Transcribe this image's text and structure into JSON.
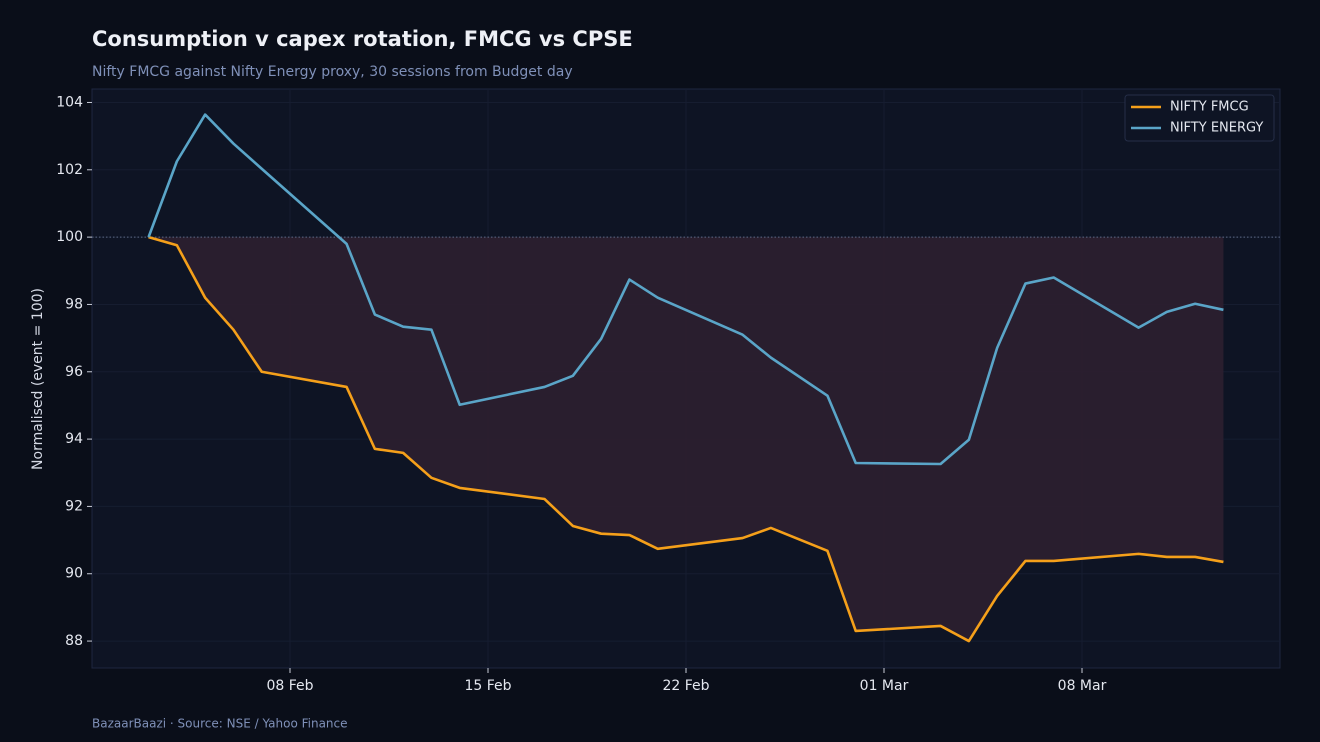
{
  "chart_data": {
    "type": "line",
    "title": "Consumption v capex rotation, FMCG vs CPSE",
    "subtitle": "Nifty FMCG against Nifty Energy proxy, 30 sessions from Budget day",
    "ylabel": "Normalised (event = 100)",
    "source": "BazaarBaazi  ·  Source: NSE / Yahoo Finance",
    "x": [
      "03 Feb",
      "04 Feb",
      "05 Feb",
      "06 Feb",
      "07 Feb",
      "10 Feb",
      "11 Feb",
      "12 Feb",
      "13 Feb",
      "14 Feb",
      "17 Feb",
      "18 Feb",
      "19 Feb",
      "20 Feb",
      "21 Feb",
      "24 Feb",
      "25 Feb",
      "27 Feb",
      "28 Feb",
      "03 Mar",
      "04 Mar",
      "05 Mar",
      "06 Mar",
      "07 Mar",
      "10 Mar",
      "11 Mar",
      "12 Mar",
      "13 Mar"
    ],
    "series": [
      {
        "name": "NIFTY FMCG",
        "color": "#f5a01a",
        "values": [
          100,
          99.76,
          98.2,
          97.25,
          96.0,
          95.55,
          93.71,
          93.59,
          92.85,
          92.55,
          92.22,
          91.42,
          91.19,
          91.15,
          90.74,
          91.06,
          91.36,
          90.68,
          88.3,
          88.45,
          88.0,
          89.34,
          90.38,
          90.38,
          90.59,
          90.5,
          90.5,
          90.35
        ]
      },
      {
        "name": "NIFTY ENERGY",
        "color": "#5aa5c8",
        "values": [
          100,
          102.25,
          103.64,
          102.78,
          102.03,
          99.8,
          97.7,
          97.34,
          97.25,
          95.02,
          95.55,
          95.88,
          96.98,
          98.74,
          98.2,
          97.1,
          96.42,
          95.29,
          93.29,
          93.26,
          93.98,
          96.71,
          98.62,
          98.8,
          97.31,
          97.78,
          98.02,
          97.84
        ]
      }
    ],
    "baseline": 100,
    "fill_color": "#2c1f30",
    "xlim": [
      "01 Feb",
      "15 Mar"
    ],
    "xticks": [
      "08 Feb",
      "15 Feb",
      "22 Feb",
      "01 Mar",
      "08 Mar"
    ],
    "ylim": [
      87.2,
      104.4
    ],
    "yticks": [
      88,
      90,
      92,
      94,
      96,
      98,
      100,
      102,
      104
    ],
    "grid": true,
    "legend": "upper right"
  }
}
